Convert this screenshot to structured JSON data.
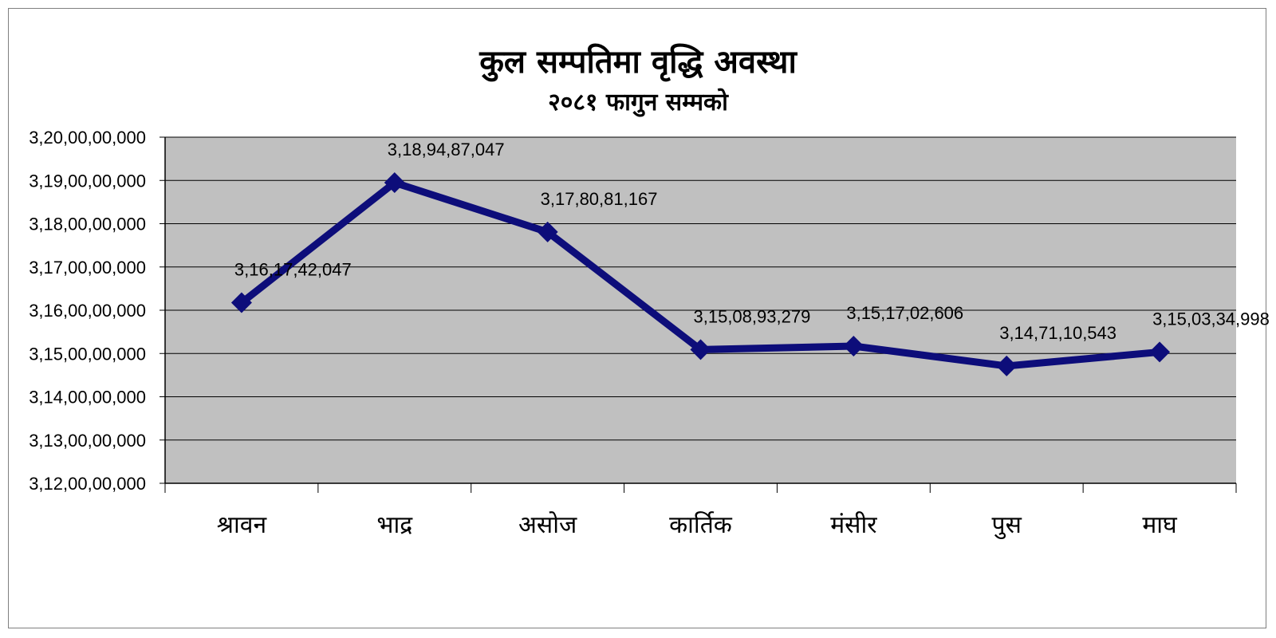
{
  "chart_data": {
    "type": "line",
    "title": "कुल सम्पतिमा वृद्धि अवस्था",
    "subtitle": "२०८१ फागुन सम्मको",
    "categories": [
      "श्रावन",
      "भाद्र",
      "असोज",
      "कार्तिक",
      "मंसीर",
      "पुस",
      "माघ"
    ],
    "series": [
      {
        "values": [
          3161742047,
          3189487047,
          3178081167,
          3150893279,
          3151702606,
          3147110543,
          3150334998
        ],
        "labels": [
          "3,16,17,42,047",
          "3,18,94,87,047",
          "3,17,80,81,167",
          "3,15,08,93,279",
          "3,15,17,02,606",
          "3,14,71,10,543",
          "3,15,03,34,998"
        ]
      }
    ],
    "ylim": [
      3120000000,
      3200000000
    ],
    "yticks": [
      {
        "value": 3120000000,
        "label": "3,12,00,00,000"
      },
      {
        "value": 3130000000,
        "label": "3,13,00,00,000"
      },
      {
        "value": 3140000000,
        "label": "3,14,00,00,000"
      },
      {
        "value": 3150000000,
        "label": "3,15,00,00,000"
      },
      {
        "value": 3160000000,
        "label": "3,16,00,00,000"
      },
      {
        "value": 3170000000,
        "label": "3,17,00,00,000"
      },
      {
        "value": 3180000000,
        "label": "3,18,00,00,000"
      },
      {
        "value": 3190000000,
        "label": "3,19,00,00,000"
      },
      {
        "value": 3200000000,
        "label": "3,20,00,00,000"
      }
    ],
    "xlabel": "",
    "ylabel": "",
    "grid": true,
    "legend": "none",
    "colors": {
      "line": "#0d0d7a",
      "plot_background": "#c0c0c0",
      "gridline": "#000000"
    }
  }
}
